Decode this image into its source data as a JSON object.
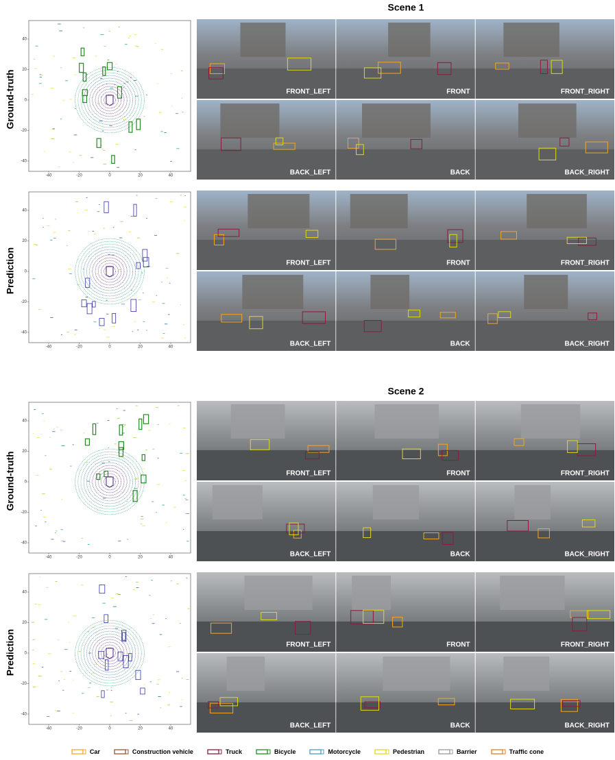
{
  "scenes": [
    {
      "title": "Scene 1",
      "rows": [
        {
          "label": "Ground-truth",
          "cameras": [
            "FRONT_LEFT",
            "FRONT",
            "FRONT_RIGHT",
            "BACK_LEFT",
            "BACK",
            "BACK_RIGHT"
          ],
          "xticks": [
            -40,
            -20,
            0,
            20,
            40
          ],
          "yticks": [
            40,
            20,
            0,
            -20,
            -40
          ]
        },
        {
          "label": "Prediction",
          "cameras": [
            "FRONT_LEFT",
            "FRONT",
            "FRONT_RIGHT",
            "BACK_LEFT",
            "BACK",
            "BACK_RIGHT"
          ],
          "xticks": [
            -40,
            -20,
            0,
            20,
            40
          ],
          "yticks": [
            40,
            20,
            0,
            -20,
            -40
          ]
        }
      ]
    },
    {
      "title": "Scene 2",
      "rows": [
        {
          "label": "Ground-truth",
          "cameras": [
            "FRONT_LEFT",
            "FRONT",
            "FRONT_RIGHT",
            "BACK_LEFT",
            "BACK",
            "BACK_RIGHT"
          ],
          "xticks": [
            -40,
            -20,
            0,
            20,
            40
          ],
          "yticks": [
            40,
            20,
            0,
            -20,
            -40
          ]
        },
        {
          "label": "Prediction",
          "cameras": [
            "FRONT_LEFT",
            "FRONT",
            "FRONT_RIGHT",
            "BACK_LEFT",
            "BACK",
            "BACK_RIGHT"
          ],
          "xticks": [
            -40,
            -20,
            0,
            20,
            40
          ],
          "yticks": [
            40,
            20,
            0,
            -20,
            -40
          ]
        }
      ]
    }
  ],
  "legend": [
    {
      "label": "Car",
      "color": "#f5a623"
    },
    {
      "label": "Construction vehicle",
      "color": "#a0522d"
    },
    {
      "label": "Truck",
      "color": "#8b1a3a"
    },
    {
      "label": "Bicycle",
      "color": "#228b22"
    },
    {
      "label": "Motorcycle",
      "color": "#4a9bc0"
    },
    {
      "label": "Pedestrian",
      "color": "#e0d81c"
    },
    {
      "label": "Barrier",
      "color": "#999999"
    },
    {
      "label": "Traffic cone",
      "color": "#e08020"
    }
  ]
}
